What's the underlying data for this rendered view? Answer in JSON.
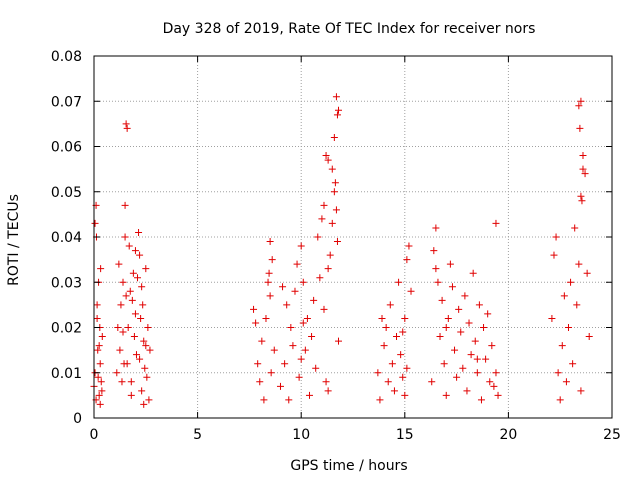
{
  "chart_data": {
    "type": "scatter",
    "title": "Day 328 of 2019, Rate Of TEC Index for receiver nors",
    "xlabel": "GPS time / hours",
    "ylabel": "ROTI / TECUs",
    "xlim": [
      0,
      25
    ],
    "ylim": [
      0,
      0.08
    ],
    "xticks": [
      0,
      5,
      10,
      15,
      20,
      25
    ],
    "xtick_labels": [
      "0",
      "5",
      "10",
      "15",
      "20",
      "25"
    ],
    "yticks": [
      0,
      0.01,
      0.02,
      0.03,
      0.04,
      0.05,
      0.06,
      0.07,
      0.08
    ],
    "ytick_labels": [
      "0",
      "0.01",
      "0.02",
      "0.03",
      "0.04",
      "0.05",
      "0.06",
      "0.07",
      "0.08"
    ],
    "grid": true,
    "marker": "+",
    "color": "#e00000",
    "series": [
      {
        "name": "ROTI",
        "x": [
          0.0,
          0.05,
          0.1,
          0.12,
          0.15,
          0.18,
          0.2,
          0.22,
          0.25,
          0.28,
          0.3,
          0.32,
          0.35,
          0.38,
          0.4,
          0.05,
          0.1,
          0.15,
          0.25,
          0.3,
          1.1,
          1.15,
          1.2,
          1.25,
          1.3,
          1.35,
          1.4,
          1.45,
          1.5,
          1.55,
          1.6,
          1.65,
          1.7,
          1.75,
          1.8,
          1.85,
          1.9,
          1.95,
          2.0,
          2.05,
          2.1,
          2.15,
          2.2,
          2.25,
          2.3,
          2.35,
          2.4,
          2.45,
          2.5,
          2.55,
          2.6,
          2.65,
          2.7,
          1.5,
          1.55,
          1.6,
          1.4,
          1.8,
          2.0,
          2.2,
          2.3,
          2.4,
          2.5,
          7.7,
          7.8,
          7.9,
          8.0,
          8.1,
          8.2,
          8.3,
          8.4,
          8.5,
          8.6,
          8.7,
          8.45,
          8.5,
          8.55,
          9.0,
          9.1,
          9.2,
          9.3,
          9.4,
          9.5,
          9.6,
          9.7,
          9.8,
          9.9,
          10.0,
          10.1,
          10.2,
          10.3,
          10.4,
          10.5,
          10.6,
          10.7,
          10.8,
          10.9,
          11.0,
          11.1,
          11.2,
          11.3,
          11.4,
          11.5,
          11.6,
          11.7,
          11.75,
          11.8,
          10.0,
          10.1,
          11.3,
          11.5,
          11.6,
          11.65,
          11.7,
          11.75,
          11.8,
          11.1,
          11.2,
          11.3,
          13.7,
          13.8,
          13.9,
          14.0,
          14.1,
          14.2,
          14.3,
          14.4,
          14.5,
          14.6,
          14.7,
          14.8,
          14.9,
          15.0,
          15.1,
          15.2,
          15.3,
          14.9,
          15.0,
          15.1,
          16.3,
          16.4,
          16.5,
          16.6,
          16.7,
          16.8,
          16.9,
          17.0,
          17.1,
          17.2,
          17.3,
          17.4,
          17.5,
          17.6,
          17.7,
          17.8,
          17.9,
          18.0,
          18.1,
          18.2,
          18.3,
          18.4,
          18.5,
          18.6,
          18.7,
          18.8,
          18.9,
          19.0,
          19.1,
          19.2,
          19.3,
          19.4,
          19.5,
          16.5,
          17.0,
          18.5,
          19.4,
          22.1,
          22.2,
          22.3,
          22.4,
          22.5,
          22.6,
          22.7,
          22.8,
          22.9,
          23.0,
          23.1,
          23.2,
          23.3,
          23.4,
          23.5,
          23.6,
          23.7,
          23.8,
          23.9,
          23.4,
          23.45,
          23.5,
          23.55,
          23.6,
          23.5
        ],
        "y": [
          0.007,
          0.043,
          0.047,
          0.04,
          0.025,
          0.015,
          0.009,
          0.03,
          0.005,
          0.02,
          0.012,
          0.033,
          0.008,
          0.006,
          0.018,
          0.01,
          0.004,
          0.022,
          0.016,
          0.003,
          0.01,
          0.02,
          0.034,
          0.015,
          0.025,
          0.008,
          0.03,
          0.012,
          0.047,
          0.065,
          0.064,
          0.02,
          0.038,
          0.028,
          0.005,
          0.026,
          0.032,
          0.018,
          0.037,
          0.014,
          0.031,
          0.041,
          0.036,
          0.022,
          0.006,
          0.025,
          0.017,
          0.011,
          0.033,
          0.009,
          0.02,
          0.004,
          0.015,
          0.04,
          0.027,
          0.012,
          0.019,
          0.008,
          0.023,
          0.013,
          0.029,
          0.003,
          0.016,
          0.024,
          0.021,
          0.012,
          0.008,
          0.017,
          0.004,
          0.022,
          0.03,
          0.039,
          0.035,
          0.015,
          0.032,
          0.027,
          0.01,
          0.007,
          0.029,
          0.012,
          0.025,
          0.004,
          0.02,
          0.016,
          0.028,
          0.034,
          0.009,
          0.038,
          0.03,
          0.015,
          0.022,
          0.005,
          0.018,
          0.026,
          0.011,
          0.04,
          0.031,
          0.044,
          0.047,
          0.058,
          0.057,
          0.036,
          0.043,
          0.05,
          0.071,
          0.067,
          0.068,
          0.013,
          0.021,
          0.033,
          0.055,
          0.062,
          0.052,
          0.046,
          0.039,
          0.017,
          0.024,
          0.008,
          0.006,
          0.01,
          0.004,
          0.022,
          0.016,
          0.02,
          0.008,
          0.025,
          0.012,
          0.006,
          0.018,
          0.03,
          0.014,
          0.009,
          0.022,
          0.035,
          0.038,
          0.028,
          0.019,
          0.005,
          0.011,
          0.008,
          0.037,
          0.042,
          0.03,
          0.018,
          0.026,
          0.012,
          0.005,
          0.022,
          0.034,
          0.029,
          0.015,
          0.009,
          0.024,
          0.019,
          0.011,
          0.027,
          0.006,
          0.021,
          0.014,
          0.032,
          0.017,
          0.01,
          0.025,
          0.004,
          0.02,
          0.013,
          0.023,
          0.008,
          0.016,
          0.007,
          0.043,
          0.005,
          0.033,
          0.02,
          0.013,
          0.01,
          0.022,
          0.036,
          0.04,
          0.01,
          0.004,
          0.016,
          0.027,
          0.008,
          0.02,
          0.03,
          0.012,
          0.042,
          0.025,
          0.034,
          0.049,
          0.058,
          0.054,
          0.032,
          0.018,
          0.069,
          0.064,
          0.07,
          0.048,
          0.055,
          0.006
        ]
      }
    ]
  }
}
